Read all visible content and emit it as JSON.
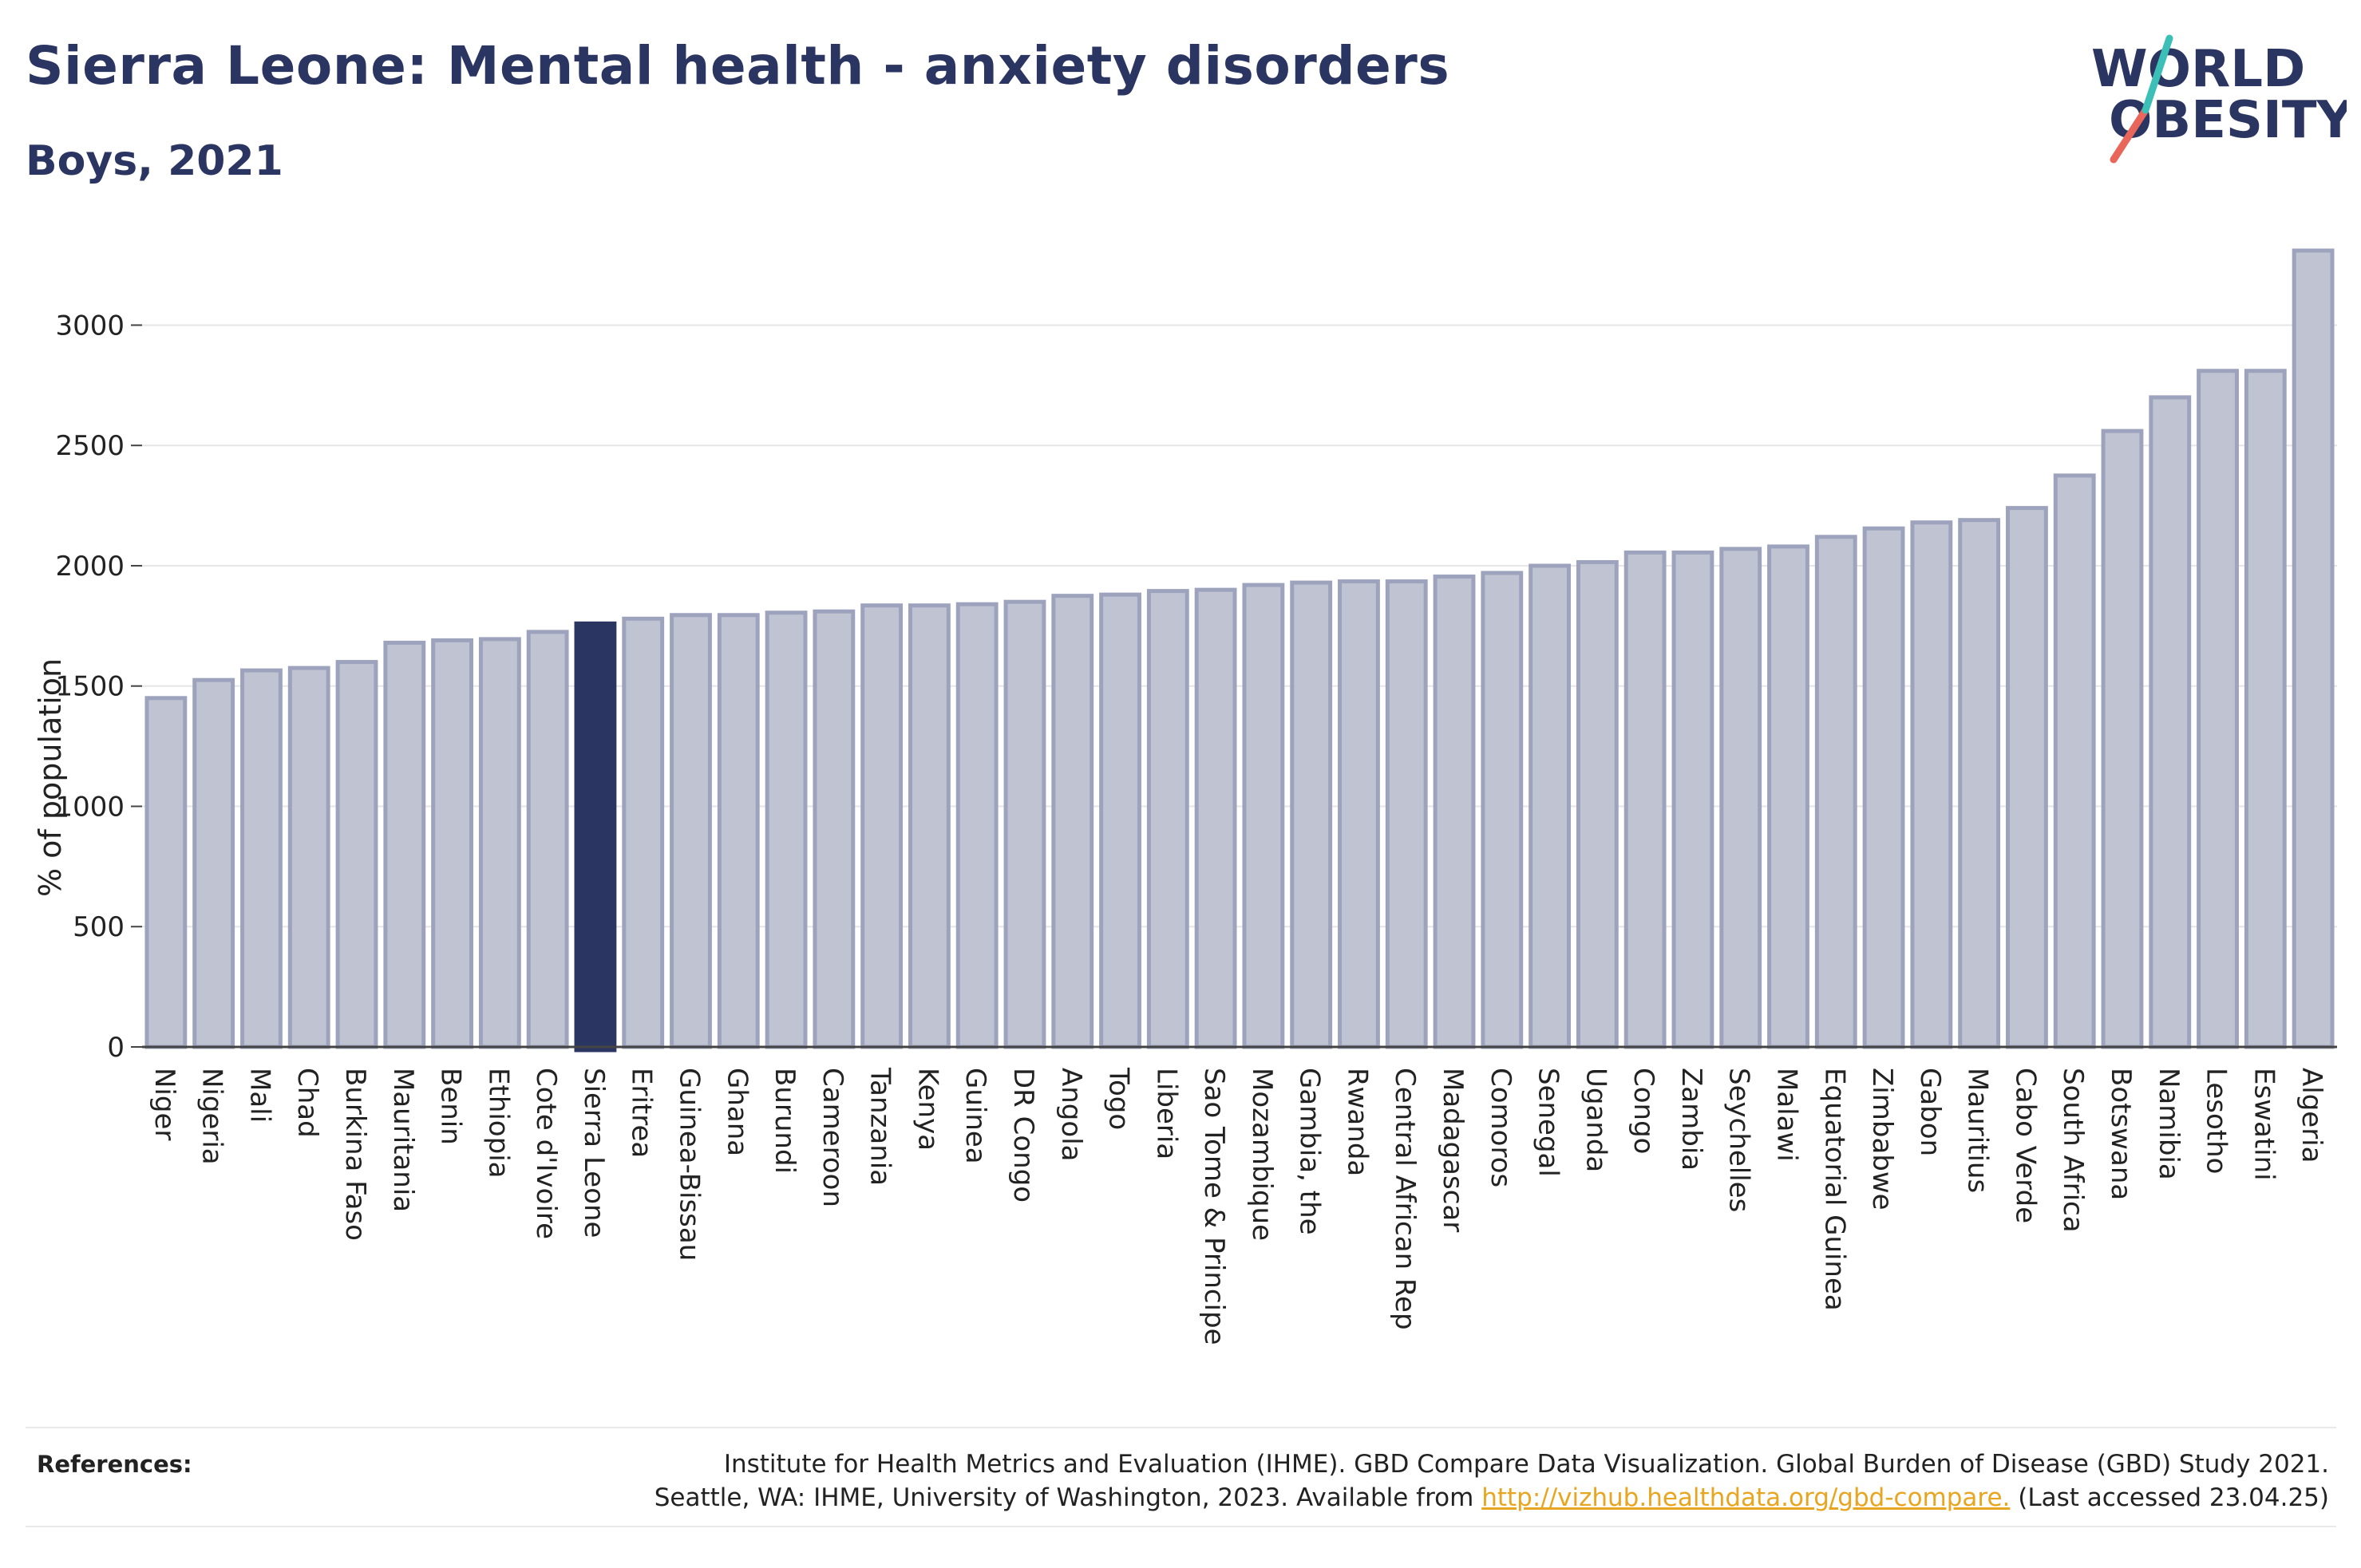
{
  "header": {
    "title": "Sierra Leone: Mental health - anxiety disorders",
    "subtitle": "Boys, 2021"
  },
  "logo": {
    "line1": "WORLD",
    "line2": "OBESITY"
  },
  "chart_data": {
    "type": "bar",
    "ylabel": "% of population",
    "ylim": [
      0,
      3300
    ],
    "yticks": [
      0,
      500,
      1000,
      1500,
      2000,
      2500,
      3000
    ],
    "grid": true,
    "highlight": "Sierra Leone",
    "colors": {
      "bar": "#bfc3d2",
      "bar_border": "#9ea3bd",
      "highlight": "#2b3562"
    },
    "categories": [
      "Niger",
      "Nigeria",
      "Mali",
      "Chad",
      "Burkina Faso",
      "Mauritania",
      "Benin",
      "Ethiopia",
      "Cote d'Ivoire",
      "Sierra Leone",
      "Eritrea",
      "Guinea-Bissau",
      "Ghana",
      "Burundi",
      "Cameroon",
      "Tanzania",
      "Kenya",
      "Guinea",
      "DR Congo",
      "Angola",
      "Togo",
      "Liberia",
      "Sao Tome & Principe",
      "Mozambique",
      "Gambia, the",
      "Rwanda",
      "Central African Rep",
      "Madagascar",
      "Comoros",
      "Senegal",
      "Uganda",
      "Congo",
      "Zambia",
      "Seychelles",
      "Malawi",
      "Equatorial Guinea",
      "Zimbabwe",
      "Gabon",
      "Mauritius",
      "Cabo Verde",
      "South Africa",
      "Botswana",
      "Namibia",
      "Lesotho",
      "Eswatini",
      "Algeria"
    ],
    "values": [
      1450,
      1525,
      1565,
      1575,
      1600,
      1680,
      1690,
      1695,
      1725,
      1760,
      1780,
      1795,
      1795,
      1805,
      1810,
      1835,
      1835,
      1840,
      1850,
      1875,
      1880,
      1895,
      1900,
      1920,
      1930,
      1935,
      1935,
      1955,
      1970,
      2000,
      2015,
      2055,
      2055,
      2070,
      2080,
      2120,
      2155,
      2180,
      2190,
      2240,
      2375,
      2560,
      2700,
      2810,
      2810,
      3310
    ]
  },
  "references": {
    "label": "References:",
    "line1": "Institute for Health Metrics and Evaluation (IHME). GBD Compare Data Visualization. Global Burden of Disease (GBD) Study 2021.",
    "line2_prefix": "Seattle, WA: IHME, University of Washington, 2023. Available from ",
    "link": "http://vizhub.healthdata.org/gbd-compare.",
    "line2_suffix": " (Last accessed 23.04.25)"
  }
}
